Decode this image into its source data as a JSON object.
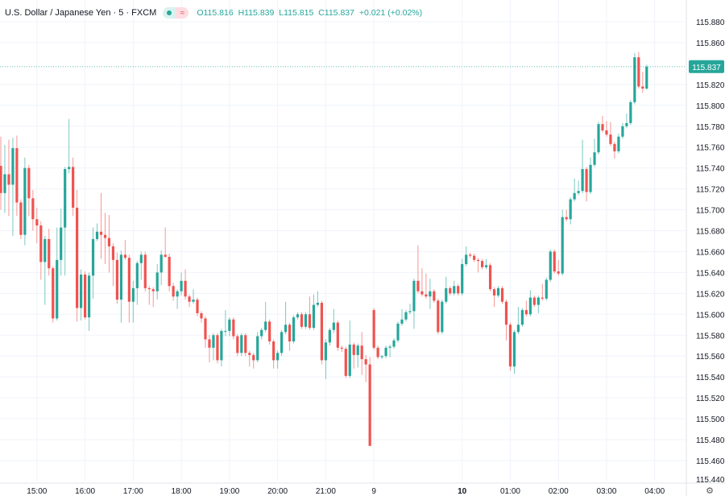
{
  "header": {
    "title": "U.S. Dollar / Japanese Yen · 5 · FXCM",
    "badge_icons": [
      "market-open-dot-icon",
      "approx-equal-icon"
    ],
    "ohlc": {
      "o": "O115.816",
      "h": "H115.839",
      "l": "L115.815",
      "c": "C115.837",
      "change": "+0.021 (+0.02%)"
    }
  },
  "settings_icon": "gear-icon",
  "chart_data": {
    "type": "candlestick",
    "interval": "5",
    "colors": {
      "up": "#26a69a",
      "down": "#ef5350",
      "grid": "#f0f3fa",
      "text": "#131722"
    },
    "ylim": [
      115.44,
      115.89
    ],
    "yticks": [
      115.46,
      115.48,
      115.5,
      115.52,
      115.54,
      115.56,
      115.58,
      115.6,
      115.62,
      115.64,
      115.66,
      115.68,
      115.7,
      115.72,
      115.74,
      115.76,
      115.78,
      115.8,
      115.82,
      115.86,
      115.88
    ],
    "ytick_labels": [
      "115.460",
      "115.480",
      "115.500",
      "115.520",
      "115.540",
      "115.560",
      "115.580",
      "115.600",
      "115.620",
      "115.640",
      "115.660",
      "115.680",
      "115.700",
      "115.720",
      "115.740",
      "115.760",
      "115.780",
      "115.800",
      "115.820",
      "115.860",
      "115.880"
    ],
    "bottom_price_label": "115.440",
    "last_price": 115.837,
    "last_price_label": "115.837",
    "xticks": [
      {
        "label": "15:00",
        "bar": 9
      },
      {
        "label": "16:00",
        "bar": 21
      },
      {
        "label": "17:00",
        "bar": 33
      },
      {
        "label": "18:00",
        "bar": 45
      },
      {
        "label": "19:00",
        "bar": 57
      },
      {
        "label": "20:00",
        "bar": 69
      },
      {
        "label": "21:00",
        "bar": 81
      },
      {
        "label": "9",
        "bar": 93,
        "bold": false
      },
      {
        "label": "10",
        "bar": 115,
        "bold": true
      },
      {
        "label": "01:00",
        "bar": 127
      },
      {
        "label": "02:00",
        "bar": 139
      },
      {
        "label": "03:00",
        "bar": 151
      },
      {
        "label": "04:00",
        "bar": 163
      }
    ],
    "candles": [
      [
        115.742,
        115.77,
        115.7,
        115.716
      ],
      [
        115.716,
        115.762,
        115.697,
        115.734
      ],
      [
        115.734,
        115.767,
        115.694,
        115.724
      ],
      [
        115.724,
        115.769,
        115.675,
        115.759
      ],
      [
        115.759,
        115.771,
        115.694,
        115.707
      ],
      [
        115.707,
        115.71,
        115.672,
        115.676
      ],
      [
        115.676,
        115.75,
        115.666,
        115.74
      ],
      [
        115.74,
        115.743,
        115.694,
        115.711
      ],
      [
        115.711,
        115.719,
        115.68,
        115.691
      ],
      [
        115.691,
        115.702,
        115.668,
        115.685
      ],
      [
        115.685,
        115.689,
        115.633,
        115.65
      ],
      [
        115.65,
        115.675,
        115.609,
        115.672
      ],
      [
        115.672,
        115.682,
        115.637,
        115.644
      ],
      [
        115.644,
        115.646,
        115.592,
        115.596
      ],
      [
        115.596,
        115.683,
        115.594,
        115.652
      ],
      [
        115.652,
        115.701,
        115.637,
        115.683
      ],
      [
        115.683,
        115.741,
        115.637,
        115.739
      ],
      [
        115.739,
        115.787,
        115.735,
        115.741
      ],
      [
        115.741,
        115.75,
        115.694,
        115.702
      ],
      [
        115.702,
        115.719,
        115.593,
        115.606
      ],
      [
        115.606,
        115.643,
        115.594,
        115.638
      ],
      [
        115.638,
        115.641,
        115.595,
        115.597
      ],
      [
        115.597,
        115.64,
        115.584,
        115.637
      ],
      [
        115.637,
        115.683,
        115.615,
        115.672
      ],
      [
        115.672,
        115.687,
        115.67,
        115.679
      ],
      [
        115.679,
        115.716,
        115.653,
        115.676
      ],
      [
        115.676,
        115.697,
        115.648,
        115.673
      ],
      [
        115.673,
        115.695,
        115.64,
        115.665
      ],
      [
        115.665,
        115.668,
        115.627,
        115.652
      ],
      [
        115.652,
        115.659,
        115.61,
        115.614
      ],
      [
        115.614,
        115.661,
        115.592,
        115.657
      ],
      [
        115.657,
        115.671,
        115.652,
        115.654
      ],
      [
        115.654,
        115.657,
        115.592,
        115.612
      ],
      [
        115.612,
        115.632,
        115.592,
        115.625
      ],
      [
        115.625,
        115.651,
        115.609,
        115.649
      ],
      [
        115.649,
        115.66,
        115.633,
        115.657
      ],
      [
        115.657,
        115.66,
        115.622,
        115.625
      ],
      [
        115.625,
        115.627,
        115.609,
        115.624
      ],
      [
        115.624,
        115.626,
        115.607,
        115.622
      ],
      [
        115.622,
        115.648,
        115.614,
        115.64
      ],
      [
        115.64,
        115.661,
        115.628,
        115.657
      ],
      [
        115.657,
        115.683,
        115.654,
        115.655
      ],
      [
        115.655,
        115.658,
        115.622,
        115.627
      ],
      [
        115.627,
        115.63,
        115.613,
        115.617
      ],
      [
        115.617,
        115.624,
        115.605,
        115.622
      ],
      [
        115.622,
        115.64,
        115.618,
        115.632
      ],
      [
        115.632,
        115.643,
        115.614,
        115.617
      ],
      [
        115.617,
        115.619,
        115.607,
        115.612
      ],
      [
        115.612,
        115.624,
        115.61,
        115.614
      ],
      [
        115.614,
        115.616,
        115.598,
        115.601
      ],
      [
        115.601,
        115.603,
        115.592,
        115.596
      ],
      [
        115.596,
        115.598,
        115.568,
        115.576
      ],
      [
        115.576,
        115.58,
        115.554,
        115.568
      ],
      [
        115.568,
        115.582,
        115.556,
        115.58
      ],
      [
        115.58,
        115.582,
        115.553,
        115.556
      ],
      [
        115.556,
        115.586,
        115.55,
        115.584
      ],
      [
        115.584,
        115.604,
        115.579,
        115.584
      ],
      [
        115.584,
        115.597,
        115.579,
        115.595
      ],
      [
        115.595,
        115.597,
        115.576,
        115.579
      ],
      [
        115.579,
        115.581,
        115.56,
        115.563
      ],
      [
        115.563,
        115.582,
        115.56,
        115.58
      ],
      [
        115.58,
        115.582,
        115.56,
        115.563
      ],
      [
        115.563,
        115.565,
        115.55,
        115.561
      ],
      [
        115.561,
        115.563,
        115.548,
        115.556
      ],
      [
        115.556,
        115.583,
        115.554,
        115.579
      ],
      [
        115.579,
        115.587,
        115.576,
        115.585
      ],
      [
        115.585,
        115.612,
        115.583,
        115.593
      ],
      [
        115.593,
        115.595,
        115.571,
        115.574
      ],
      [
        115.574,
        115.576,
        115.548,
        115.556
      ],
      [
        115.556,
        115.565,
        115.548,
        115.563
      ],
      [
        115.563,
        115.585,
        115.56,
        115.583
      ],
      [
        115.583,
        115.612,
        115.581,
        115.59
      ],
      [
        115.59,
        115.592,
        115.565,
        115.574
      ],
      [
        115.574,
        115.599,
        115.572,
        115.597
      ],
      [
        115.597,
        115.602,
        115.595,
        115.6
      ],
      [
        115.6,
        115.602,
        115.586,
        115.588
      ],
      [
        115.588,
        115.602,
        115.586,
        115.6
      ],
      [
        115.6,
        115.617,
        115.585,
        115.587
      ],
      [
        115.587,
        115.619,
        115.585,
        115.609
      ],
      [
        115.609,
        115.622,
        115.607,
        115.611
      ],
      [
        115.611,
        115.613,
        115.552,
        115.556
      ],
      [
        115.556,
        115.576,
        115.538,
        115.573
      ],
      [
        115.573,
        115.587,
        115.57,
        115.585
      ],
      [
        115.585,
        115.605,
        115.582,
        115.592
      ],
      [
        115.592,
        115.594,
        115.565,
        115.568
      ],
      [
        115.568,
        115.57,
        115.564,
        115.567
      ],
      [
        115.567,
        115.569,
        115.539,
        115.541
      ],
      [
        115.541,
        115.594,
        115.539,
        115.571
      ],
      [
        115.571,
        115.573,
        115.548,
        115.561
      ],
      [
        115.561,
        115.572,
        115.549,
        115.57
      ],
      [
        115.57,
        115.583,
        115.542,
        115.557
      ],
      [
        115.557,
        115.561,
        115.535,
        115.552
      ],
      [
        115.552,
        115.559,
        115.474,
        115.474
      ],
      [
        115.604,
        115.606,
        115.566,
        115.568
      ],
      [
        115.568,
        115.57,
        115.557,
        115.559
      ],
      [
        115.559,
        115.561,
        115.557,
        115.56
      ],
      [
        115.56,
        115.57,
        115.558,
        115.568
      ],
      [
        115.568,
        115.571,
        115.559,
        115.569
      ],
      [
        115.569,
        115.577,
        115.567,
        115.575
      ],
      [
        115.575,
        115.593,
        115.573,
        115.591
      ],
      [
        115.591,
        115.605,
        115.589,
        115.595
      ],
      [
        115.595,
        115.604,
        115.593,
        115.602
      ],
      [
        115.602,
        115.61,
        115.6,
        115.603
      ],
      [
        115.603,
        115.634,
        115.586,
        115.632
      ],
      [
        115.632,
        115.666,
        115.62,
        115.622
      ],
      [
        115.622,
        115.644,
        115.617,
        115.619
      ],
      [
        115.619,
        115.639,
        115.615,
        115.617
      ],
      [
        115.617,
        115.634,
        115.605,
        115.622
      ],
      [
        115.622,
        115.624,
        115.611,
        115.613
      ],
      [
        115.613,
        115.615,
        115.581,
        115.583
      ],
      [
        115.583,
        115.614,
        115.581,
        115.612
      ],
      [
        115.612,
        115.636,
        115.61,
        115.625
      ],
      [
        115.625,
        115.627,
        115.618,
        115.62
      ],
      [
        115.62,
        115.632,
        115.618,
        115.627
      ],
      [
        115.627,
        115.629,
        115.618,
        115.62
      ],
      [
        115.62,
        115.653,
        115.618,
        115.648
      ],
      [
        115.648,
        115.665,
        115.646,
        115.657
      ],
      [
        115.657,
        115.659,
        115.654,
        115.656
      ],
      [
        115.656,
        115.658,
        115.65,
        115.652
      ],
      [
        115.652,
        115.654,
        115.64,
        115.651
      ],
      [
        115.651,
        115.653,
        115.643,
        115.645
      ],
      [
        115.645,
        115.653,
        115.643,
        115.647
      ],
      [
        115.647,
        115.649,
        115.622,
        115.624
      ],
      [
        115.624,
        115.626,
        115.607,
        115.618
      ],
      [
        115.618,
        115.627,
        115.616,
        115.625
      ],
      [
        115.625,
        115.627,
        115.61,
        115.612
      ],
      [
        115.612,
        115.614,
        115.575,
        115.59
      ],
      [
        115.59,
        115.592,
        115.546,
        115.55
      ],
      [
        115.55,
        115.585,
        115.543,
        115.583
      ],
      [
        115.583,
        115.607,
        115.581,
        115.59
      ],
      [
        115.59,
        115.606,
        115.588,
        115.604
      ],
      [
        115.604,
        115.613,
        115.598,
        115.6
      ],
      [
        115.6,
        115.623,
        115.598,
        115.616
      ],
      [
        115.616,
        115.618,
        115.607,
        115.609
      ],
      [
        115.609,
        115.618,
        115.601,
        115.616
      ],
      [
        115.616,
        115.629,
        115.613,
        115.615
      ],
      [
        115.615,
        115.635,
        115.613,
        115.633
      ],
      [
        115.633,
        115.662,
        115.631,
        115.66
      ],
      [
        115.66,
        115.662,
        115.639,
        115.641
      ],
      [
        115.641,
        115.652,
        115.637,
        115.639
      ],
      [
        115.639,
        115.7,
        115.637,
        115.693
      ],
      [
        115.693,
        115.7,
        115.689,
        115.691
      ],
      [
        115.691,
        115.712,
        115.686,
        115.71
      ],
      [
        115.71,
        115.73,
        115.708,
        115.716
      ],
      [
        115.716,
        115.728,
        115.714,
        115.718
      ],
      [
        115.718,
        115.767,
        115.716,
        115.739
      ],
      [
        115.739,
        115.741,
        115.708,
        115.717
      ],
      [
        115.717,
        115.75,
        115.715,
        115.743
      ],
      [
        115.743,
        115.768,
        115.741,
        115.755
      ],
      [
        115.755,
        115.784,
        115.753,
        115.782
      ],
      [
        115.782,
        115.79,
        115.774,
        115.776
      ],
      [
        115.776,
        115.785,
        115.77,
        115.772
      ],
      [
        115.772,
        115.784,
        115.761,
        115.763
      ],
      [
        115.763,
        115.765,
        115.749,
        115.756
      ],
      [
        115.756,
        115.773,
        115.754,
        115.77
      ],
      [
        115.77,
        115.783,
        115.768,
        115.78
      ],
      [
        115.78,
        115.792,
        115.778,
        115.783
      ],
      [
        115.783,
        115.805,
        115.781,
        115.803
      ],
      [
        115.803,
        115.85,
        115.801,
        115.846
      ],
      [
        115.846,
        115.851,
        115.816,
        115.818
      ],
      [
        115.818,
        115.832,
        115.812,
        115.816
      ],
      [
        115.816,
        115.839,
        115.815,
        115.837
      ]
    ]
  }
}
